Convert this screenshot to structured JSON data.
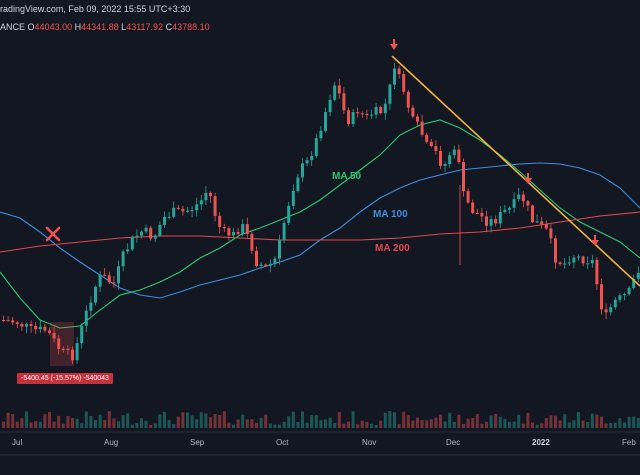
{
  "header": {
    "source_text": "radingView.com, Feb 09, 2022 15:55 UTC+3:30",
    "symbol_fragment": "ANCE"
  },
  "ohlc": {
    "open_key": "O",
    "open": "44043.00",
    "high_key": "H",
    "high": "44341.88",
    "low_key": "L",
    "low": "43117.92",
    "close_key": "C",
    "close": "43788.10"
  },
  "indicators": {
    "ma50": {
      "label": "MA 50",
      "color": "#26c96f"
    },
    "ma100": {
      "label": "MA 100",
      "color": "#3c8fe0"
    },
    "ma200": {
      "label": "MA 200",
      "color": "#e0484b"
    }
  },
  "measure_box": {
    "text": "-5400.45 (-15.57%) -540043"
  },
  "trendline": {
    "color": "#f2b13b"
  },
  "colors": {
    "up": "#26a69a",
    "down": "#ef5350",
    "background": "#131722"
  },
  "chart_data": {
    "type": "candlestick",
    "x_axis_ticks": [
      "Jul",
      "Aug",
      "Sep",
      "Oct",
      "Nov",
      "Dec",
      "2022",
      "Feb"
    ],
    "annotations": [
      "down-arrow-marker",
      "down-arrow-marker",
      "down-arrow-marker",
      "x-marker"
    ]
  }
}
